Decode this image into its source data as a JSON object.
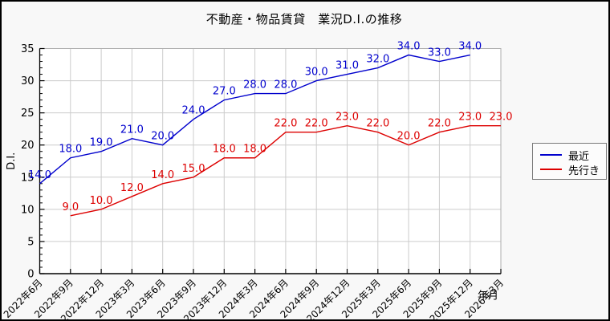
{
  "title": "不動産・物品賃貸　業況D.I.の推移",
  "legend": {
    "items": [
      {
        "label": "最近",
        "color": "#0000cd"
      },
      {
        "label": "先行き",
        "color": "#dd0000"
      }
    ]
  },
  "chart_data": {
    "type": "line",
    "title": "不動産・物品賃貸　業況D.I.の推移",
    "xlabel": "年月",
    "ylabel": "D.I.",
    "ylim": [
      0,
      35
    ],
    "y_ticks": [
      0,
      5,
      10,
      15,
      20,
      25,
      30,
      35
    ],
    "grid": true,
    "legend_position": "right-outside",
    "categories": [
      "2022年6月",
      "2022年9月",
      "2022年12月",
      "2023年3月",
      "2023年6月",
      "2023年9月",
      "2023年12月",
      "2024年3月",
      "2024年6月",
      "2024年9月",
      "2024年12月",
      "2025年3月",
      "2025年6月",
      "2025年9月",
      "2025年12月",
      "2026年3月"
    ],
    "series": [
      {
        "name": "最近",
        "color": "#0000cd",
        "start_index": 0,
        "values": [
          14.0,
          18.0,
          19.0,
          21.0,
          20.0,
          24.0,
          27.0,
          28.0,
          28.0,
          30.0,
          31.0,
          32.0,
          34.0,
          33.0,
          34.0
        ]
      },
      {
        "name": "先行き",
        "color": "#dd0000",
        "start_index": 1,
        "values": [
          9.0,
          10.0,
          12.0,
          14.0,
          15.0,
          18.0,
          18.0,
          22.0,
          22.0,
          23.0,
          22.0,
          20.0,
          22.0,
          23.0,
          23.0
        ]
      }
    ],
    "point_label_decimals": 1
  }
}
